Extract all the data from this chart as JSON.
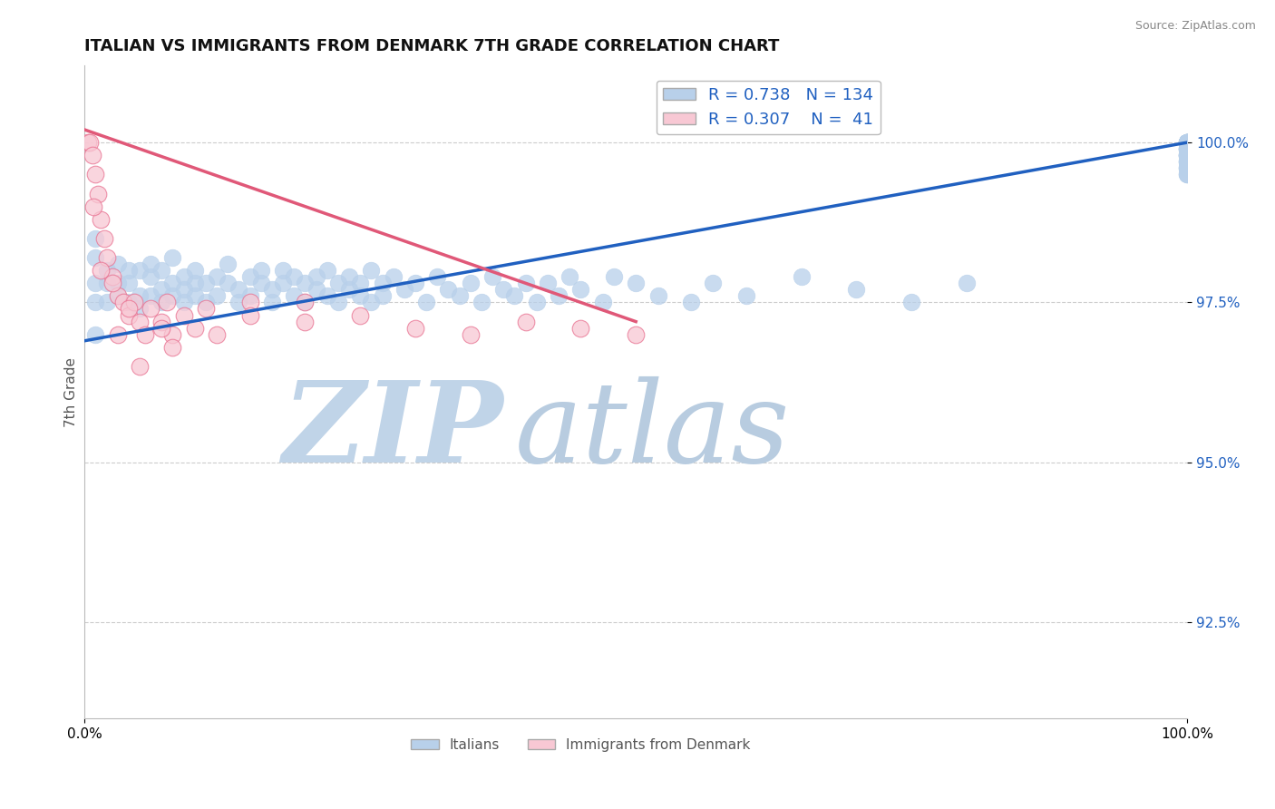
{
  "title": "ITALIAN VS IMMIGRANTS FROM DENMARK 7TH GRADE CORRELATION CHART",
  "source": "Source: ZipAtlas.com",
  "ylabel": "7th Grade",
  "xlim": [
    0.0,
    100.0
  ],
  "ylim": [
    91.0,
    101.2
  ],
  "legend_blue_label": "Italians",
  "legend_pink_label": "Immigrants from Denmark",
  "R_blue": 0.738,
  "N_blue": 134,
  "R_pink": 0.307,
  "N_pink": 41,
  "blue_color": "#b8d0ea",
  "blue_edge_color": "#b8d0ea",
  "blue_line_color": "#2060c0",
  "pink_color": "#f8c8d4",
  "pink_edge_color": "#e87090",
  "pink_line_color": "#e05878",
  "watermark_zip_color": "#c0d4e8",
  "watermark_atlas_color": "#b8cce0",
  "background_color": "#ffffff",
  "ytick_vals": [
    92.5,
    95.0,
    97.5,
    100.0
  ],
  "ytick_labels": [
    "92.5%",
    "95.0%",
    "97.5%",
    "100.0%"
  ],
  "blue_x": [
    1,
    1,
    1,
    1,
    1,
    2,
    2,
    2,
    3,
    3,
    3,
    4,
    4,
    4,
    5,
    5,
    5,
    6,
    6,
    6,
    7,
    7,
    7,
    8,
    8,
    8,
    9,
    9,
    9,
    10,
    10,
    10,
    11,
    11,
    12,
    12,
    13,
    13,
    14,
    14,
    15,
    15,
    16,
    16,
    17,
    17,
    18,
    18,
    19,
    19,
    20,
    20,
    21,
    21,
    22,
    22,
    23,
    23,
    24,
    24,
    25,
    25,
    26,
    26,
    27,
    27,
    28,
    29,
    30,
    31,
    32,
    33,
    34,
    35,
    36,
    37,
    38,
    39,
    40,
    41,
    42,
    43,
    44,
    45,
    47,
    48,
    50,
    52,
    55,
    57,
    60,
    65,
    70,
    75,
    80,
    100,
    100,
    100,
    100,
    100,
    100,
    100,
    100,
    100,
    100,
    100,
    100,
    100,
    100,
    100,
    100,
    100,
    100,
    100,
    100,
    100,
    100,
    100,
    100,
    100,
    100,
    100,
    100,
    100,
    100,
    100,
    100,
    100,
    100,
    100,
    100,
    100,
    100,
    100
  ],
  "blue_y": [
    97.8,
    98.2,
    97.5,
    98.5,
    97.0,
    97.8,
    98.0,
    97.5,
    97.8,
    98.1,
    97.6,
    98.0,
    97.5,
    97.8,
    97.6,
    98.0,
    97.4,
    97.9,
    97.6,
    98.1,
    97.7,
    98.0,
    97.5,
    97.8,
    97.6,
    98.2,
    97.5,
    97.9,
    97.7,
    97.8,
    97.6,
    98.0,
    97.5,
    97.8,
    97.6,
    97.9,
    97.8,
    98.1,
    97.5,
    97.7,
    97.9,
    97.6,
    97.8,
    98.0,
    97.5,
    97.7,
    97.8,
    98.0,
    97.6,
    97.9,
    97.8,
    97.5,
    97.7,
    97.9,
    97.6,
    98.0,
    97.8,
    97.5,
    97.7,
    97.9,
    97.6,
    97.8,
    98.0,
    97.5,
    97.8,
    97.6,
    97.9,
    97.7,
    97.8,
    97.5,
    97.9,
    97.7,
    97.6,
    97.8,
    97.5,
    97.9,
    97.7,
    97.6,
    97.8,
    97.5,
    97.8,
    97.6,
    97.9,
    97.7,
    97.5,
    97.9,
    97.8,
    97.6,
    97.5,
    97.8,
    97.6,
    97.9,
    97.7,
    97.5,
    97.8,
    99.5,
    99.8,
    100.0,
    99.9,
    100.0,
    99.7,
    99.6,
    99.8,
    100.0,
    99.5,
    99.9,
    100.0,
    99.7,
    100.0,
    99.8,
    99.6,
    99.9,
    100.0,
    99.5,
    99.8,
    100.0,
    99.7,
    99.6,
    99.9,
    100.0,
    99.8,
    100.0,
    99.7,
    99.9,
    100.0,
    99.8,
    99.6,
    100.0,
    99.9,
    100.0,
    99.8,
    100.0,
    100.0,
    100.0
  ],
  "pink_x": [
    0.3,
    0.5,
    0.7,
    1.0,
    1.2,
    1.5,
    1.8,
    2.0,
    2.5,
    3.0,
    3.5,
    4.0,
    4.5,
    5.0,
    5.5,
    6.0,
    7.0,
    7.5,
    8.0,
    9.0,
    10.0,
    11.0,
    12.0,
    15.0,
    20.0,
    25.0,
    30.0,
    35.0,
    40.0,
    45.0,
    50.0,
    20.0,
    15.0,
    8.0,
    5.0,
    3.0,
    1.5,
    0.8,
    2.5,
    4.0,
    7.0
  ],
  "pink_y": [
    100.0,
    100.0,
    99.8,
    99.5,
    99.2,
    98.8,
    98.5,
    98.2,
    97.9,
    97.6,
    97.5,
    97.3,
    97.5,
    97.2,
    97.0,
    97.4,
    97.2,
    97.5,
    97.0,
    97.3,
    97.1,
    97.4,
    97.0,
    97.5,
    97.2,
    97.3,
    97.1,
    97.0,
    97.2,
    97.1,
    97.0,
    97.5,
    97.3,
    96.8,
    96.5,
    97.0,
    98.0,
    99.0,
    97.8,
    97.4,
    97.1
  ],
  "blue_line_x0": 0,
  "blue_line_x1": 100,
  "blue_line_y0": 96.9,
  "blue_line_y1": 100.0,
  "pink_line_x0": 0,
  "pink_line_x1": 50,
  "pink_line_y0": 100.2,
  "pink_line_y1": 97.2
}
